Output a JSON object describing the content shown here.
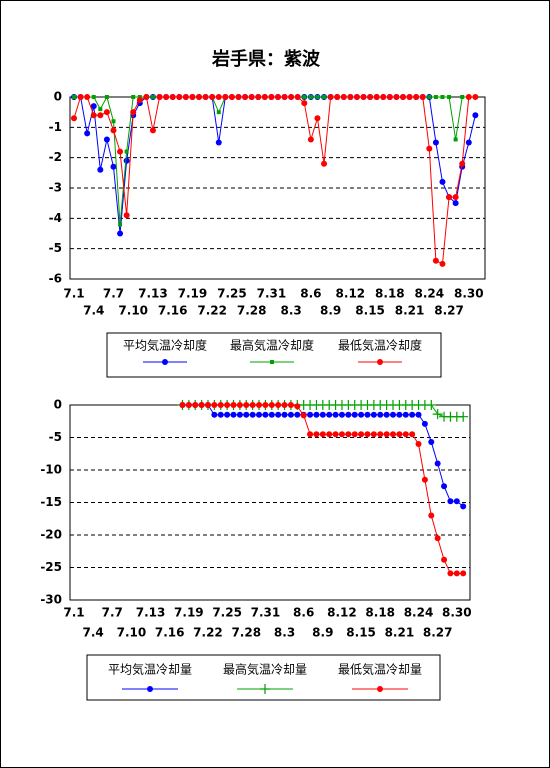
{
  "chart_data": [
    {
      "type": "line",
      "title": "岩手県：紫波",
      "categories": [
        "7.1",
        null,
        null,
        "7.4",
        null,
        null,
        "7.7",
        null,
        null,
        "7.10",
        null,
        null,
        "7.13",
        null,
        null,
        "7.16",
        null,
        null,
        "7.19",
        null,
        null,
        "7.22",
        null,
        null,
        "7.25",
        null,
        null,
        "7.28",
        null,
        null,
        "7.31",
        null,
        null,
        "8.3",
        null,
        null,
        "8.6",
        null,
        null,
        "8.9",
        null,
        null,
        "8.12",
        null,
        null,
        "8.15",
        null,
        null,
        "8.18",
        null,
        null,
        "8.21",
        null,
        null,
        "8.24",
        null,
        null,
        "8.27",
        null,
        null,
        "8.30",
        null
      ],
      "series": [
        {
          "name": "平均気温冷却度",
          "color": "#0000ff",
          "marker": "circle",
          "values": [
            0,
            0,
            -1.2,
            -0.3,
            -2.4,
            -1.4,
            -2.3,
            -4.5,
            -2.1,
            -0.6,
            -0.2,
            0,
            0,
            0,
            0,
            0,
            0,
            0,
            0,
            0,
            0,
            0,
            -1.5,
            0,
            0,
            0,
            0,
            0,
            0,
            0,
            0,
            0,
            0,
            0,
            0,
            0,
            0,
            0,
            0,
            0,
            0,
            0,
            0,
            0,
            0,
            0,
            0,
            0,
            0,
            0,
            0,
            0,
            0,
            0,
            0,
            -1.5,
            -2.8,
            -3.3,
            -3.5,
            -2.3,
            -1.5,
            -0.6
          ]
        },
        {
          "name": "最高気温冷却度",
          "color": "#00a000",
          "marker": "square",
          "values": [
            0,
            0,
            0,
            0,
            -0.4,
            0,
            -0.8,
            -4.2,
            -1.8,
            0,
            0,
            0,
            0,
            0,
            0,
            0,
            0,
            0,
            0,
            0,
            0,
            0,
            -0.5,
            0,
            0,
            0,
            0,
            0,
            0,
            0,
            0,
            0,
            0,
            0,
            0,
            0,
            0,
            0,
            0,
            0,
            0,
            0,
            0,
            0,
            0,
            0,
            0,
            0,
            0,
            0,
            0,
            0,
            0,
            0,
            0,
            0,
            0,
            0,
            -1.4,
            0,
            0,
            0
          ]
        },
        {
          "name": "最低気温冷却度",
          "color": "#ff0000",
          "marker": "circle",
          "values": [
            -0.7,
            0,
            0,
            -0.6,
            -0.6,
            -0.5,
            -1.1,
            -1.8,
            -3.9,
            -0.5,
            -0.1,
            0,
            -1.1,
            0,
            0,
            0,
            0,
            0,
            0,
            0,
            0,
            0,
            0,
            0,
            0,
            0,
            0,
            0,
            0,
            0,
            0,
            0,
            0,
            0,
            0,
            -0.2,
            -1.4,
            -0.7,
            -2.2,
            0,
            0,
            0,
            0,
            0,
            0,
            0,
            0,
            0,
            0,
            0,
            0,
            0,
            0,
            0,
            -1.7,
            -5.4,
            -5.5,
            -3.3,
            -3.3,
            -2.2,
            0,
            0
          ]
        }
      ],
      "ylim": [
        -6,
        0
      ],
      "yticks": [
        0,
        -1,
        -2,
        -3,
        -4,
        -5,
        -6
      ],
      "grid": true,
      "legend": "bottom"
    },
    {
      "type": "line",
      "categories": [
        "7.1",
        null,
        null,
        "7.4",
        null,
        null,
        "7.7",
        null,
        null,
        "7.10",
        null,
        null,
        "7.13",
        null,
        null,
        "7.16",
        null,
        null,
        "7.19",
        null,
        null,
        "7.22",
        null,
        null,
        "7.25",
        null,
        null,
        "7.28",
        null,
        null,
        "7.31",
        null,
        null,
        "8.3",
        null,
        null,
        "8.6",
        null,
        null,
        "8.9",
        null,
        null,
        "8.12",
        null,
        null,
        "8.15",
        null,
        null,
        "8.18",
        null,
        null,
        "8.21",
        null,
        null,
        "8.24",
        null,
        null,
        "8.27",
        null,
        null,
        "8.30",
        null
      ],
      "series": [
        {
          "name": "平均気温冷却量",
          "color": "#0000ff",
          "marker": "circle",
          "values": [
            null,
            null,
            null,
            null,
            null,
            null,
            null,
            null,
            null,
            null,
            null,
            null,
            null,
            null,
            null,
            null,
            null,
            0,
            0,
            0,
            0,
            0,
            -1.5,
            -1.5,
            -1.5,
            -1.5,
            -1.5,
            -1.5,
            -1.5,
            -1.5,
            -1.5,
            -1.5,
            -1.5,
            -1.5,
            -1.5,
            -1.5,
            -1.5,
            -1.5,
            -1.5,
            -1.5,
            -1.5,
            -1.5,
            -1.5,
            -1.5,
            -1.5,
            -1.5,
            -1.5,
            -1.5,
            -1.5,
            -1.5,
            -1.5,
            -1.5,
            -1.5,
            -1.5,
            -1.5,
            -2.9,
            -5.7,
            -9,
            -12.5,
            -14.8,
            -14.8,
            -15.6
          ]
        },
        {
          "name": "最高気温冷却量",
          "color": "#00a000",
          "marker": "plus",
          "values": [
            null,
            null,
            null,
            null,
            null,
            null,
            null,
            null,
            null,
            null,
            null,
            null,
            null,
            null,
            null,
            null,
            null,
            0,
            0,
            0,
            0,
            0,
            0,
            0,
            0,
            0,
            0,
            0,
            0,
            0,
            0,
            0,
            0,
            0,
            0,
            0,
            0,
            0,
            0,
            0,
            0,
            0,
            0,
            0,
            0,
            0,
            0,
            0,
            0,
            0,
            0,
            0,
            0,
            0,
            0,
            0,
            0,
            -1.4,
            -1.8,
            -1.8,
            -1.8,
            -1.8
          ]
        },
        {
          "name": "最低気温冷却量",
          "color": "#ff0000",
          "marker": "circle",
          "values": [
            null,
            null,
            null,
            null,
            null,
            null,
            null,
            null,
            null,
            null,
            null,
            null,
            null,
            null,
            null,
            null,
            null,
            0,
            0,
            0,
            0,
            0,
            0,
            0,
            0,
            0,
            0,
            0,
            0,
            0,
            0,
            0,
            0,
            0,
            0,
            -0.2,
            -1.6,
            -4.5,
            -4.5,
            -4.5,
            -4.5,
            -4.5,
            -4.5,
            -4.5,
            -4.5,
            -4.5,
            -4.5,
            -4.5,
            -4.5,
            -4.5,
            -4.5,
            -4.5,
            -4.5,
            -4.5,
            -6,
            -11.5,
            -17,
            -20.5,
            -23.8,
            -25.9,
            -25.9,
            -25.9
          ]
        }
      ],
      "ylim": [
        -30,
        0
      ],
      "yticks": [
        0,
        -5,
        -10,
        -15,
        -20,
        -25,
        -30
      ],
      "grid": true,
      "legend": "bottom"
    }
  ]
}
